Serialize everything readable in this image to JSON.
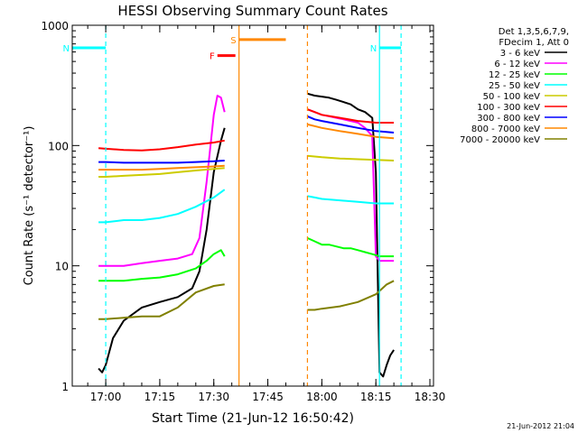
{
  "chart_data": {
    "type": "line",
    "title": "HESSI Observing Summary Count Rates",
    "xlabel": "Start Time (21-Jun-12 16:50:42)",
    "ylabel": "Count Rate (s⁻¹ detector⁻¹)",
    "y_scale": "log",
    "ylim": [
      1,
      1000
    ],
    "xlim": [
      "16:50:42",
      "18:31:00"
    ],
    "x_tick_labels": [
      "17:00",
      "17:15",
      "17:30",
      "17:45",
      "18:00",
      "18:15",
      "18:30"
    ],
    "x_tick_values": [
      "17:00",
      "17:15",
      "17:30",
      "17:45",
      "18:00",
      "18:15",
      "18:30"
    ],
    "y_tick_labels": [
      "1",
      "10",
      "100",
      "1000"
    ],
    "y_tick_values": [
      1,
      10,
      100,
      1000
    ],
    "legend_position": "right",
    "legend_header": [
      "Det 1,3,5,6,7,9,",
      "FDecim 1, Att 0"
    ],
    "series": [
      {
        "name": "3 - 6 keV",
        "color": "#000000",
        "segments": [
          {
            "x": [
              "16:58",
              "16:59",
              "17:00",
              "17:02",
              "17:05",
              "17:10",
              "17:15",
              "17:20",
              "17:24",
              "17:26",
              "17:28",
              "17:30",
              "17:32",
              "17:33"
            ],
            "y": [
              1.4,
              1.3,
              1.5,
              2.5,
              3.5,
              4.5,
              5,
              5.5,
              6.5,
              9,
              20,
              60,
              110,
              140
            ]
          },
          {
            "x": [
              "17:56",
              "17:58",
              "18:00",
              "18:02",
              "18:04",
              "18:06",
              "18:08",
              "18:10",
              "18:12",
              "18:14",
              "18:15",
              "18:16",
              "18:17",
              "18:18",
              "18:19",
              "18:20"
            ],
            "y": [
              270,
              260,
              255,
              250,
              240,
              230,
              220,
              200,
              190,
              170,
              60,
              1.3,
              1.2,
              1.5,
              1.8,
              2
            ]
          }
        ]
      },
      {
        "name": "6 - 12 keV",
        "color": "#ff00ff",
        "segments": [
          {
            "x": [
              "16:58",
              "17:00",
              "17:05",
              "17:10",
              "17:15",
              "17:20",
              "17:24",
              "17:26",
              "17:28",
              "17:30",
              "17:31",
              "17:32",
              "17:33"
            ],
            "y": [
              10,
              10,
              10,
              10.5,
              11,
              11.5,
              12.5,
              17,
              50,
              180,
              260,
              250,
              190
            ]
          },
          {
            "x": [
              "17:56",
              "17:58",
              "18:00",
              "18:02",
              "18:04",
              "18:06",
              "18:08",
              "18:10",
              "18:12",
              "18:14",
              "18:15",
              "18:16",
              "18:18",
              "18:20"
            ],
            "y": [
              200,
              190,
              180,
              175,
              170,
              165,
              160,
              155,
              140,
              120,
              12,
              11,
              11,
              11
            ]
          }
        ]
      },
      {
        "name": "12 - 25 keV",
        "color": "#00ff00",
        "segments": [
          {
            "x": [
              "16:58",
              "17:00",
              "17:05",
              "17:10",
              "17:15",
              "17:20",
              "17:25",
              "17:28",
              "17:30",
              "17:32",
              "17:33"
            ],
            "y": [
              7.5,
              7.5,
              7.5,
              7.8,
              8,
              8.5,
              9.5,
              11,
              12.5,
              13.5,
              12
            ]
          },
          {
            "x": [
              "17:56",
              "17:58",
              "18:00",
              "18:02",
              "18:04",
              "18:06",
              "18:08",
              "18:10",
              "18:12",
              "18:14",
              "18:16",
              "18:18",
              "18:20"
            ],
            "y": [
              17,
              16,
              15,
              15,
              14.5,
              14,
              14,
              13.5,
              13,
              12.5,
              12,
              12,
              12
            ]
          }
        ]
      },
      {
        "name": "25 - 50 keV",
        "color": "#00ffff",
        "segments": [
          {
            "x": [
              "16:58",
              "17:00",
              "17:05",
              "17:10",
              "17:15",
              "17:20",
              "17:25",
              "17:30",
              "17:33"
            ],
            "y": [
              23,
              23,
              24,
              24,
              25,
              27,
              31,
              37,
              43
            ]
          },
          {
            "x": [
              "17:56",
              "17:58",
              "18:00",
              "18:05",
              "18:10",
              "18:15",
              "18:20"
            ],
            "y": [
              38,
              37,
              36,
              35,
              34,
              33,
              33
            ]
          }
        ]
      },
      {
        "name": "50 - 100 keV",
        "color": "#cccc00",
        "segments": [
          {
            "x": [
              "16:58",
              "17:00",
              "17:05",
              "17:10",
              "17:15",
              "17:20",
              "17:25",
              "17:30",
              "17:33"
            ],
            "y": [
              55,
              55,
              56,
              57,
              58,
              60,
              62,
              64,
              65
            ]
          },
          {
            "x": [
              "17:56",
              "17:58",
              "18:00",
              "18:05",
              "18:10",
              "18:15",
              "18:20"
            ],
            "y": [
              82,
              81,
              80,
              78,
              77,
              76,
              75
            ]
          }
        ]
      },
      {
        "name": "100 - 300 keV",
        "color": "#ff0000",
        "segments": [
          {
            "x": [
              "16:58",
              "17:00",
              "17:05",
              "17:10",
              "17:15",
              "17:20",
              "17:25",
              "17:30",
              "17:33"
            ],
            "y": [
              95,
              94,
              92,
              91,
              93,
              97,
              102,
              106,
              110
            ]
          },
          {
            "x": [
              "17:56",
              "17:58",
              "18:00",
              "18:05",
              "18:10",
              "18:15",
              "18:20"
            ],
            "y": [
              200,
              190,
              180,
              170,
              160,
              155,
              155
            ]
          }
        ]
      },
      {
        "name": "300 - 800 keV",
        "color": "#0000ff",
        "segments": [
          {
            "x": [
              "16:58",
              "17:00",
              "17:05",
              "17:10",
              "17:15",
              "17:20",
              "17:25",
              "17:30",
              "17:33"
            ],
            "y": [
              73,
              73,
              72,
              72,
              72,
              72,
              73,
              74,
              75
            ]
          },
          {
            "x": [
              "17:56",
              "17:58",
              "18:00",
              "18:05",
              "18:10",
              "18:15",
              "18:20"
            ],
            "y": [
              175,
              165,
              160,
              150,
              140,
              132,
              128
            ]
          }
        ]
      },
      {
        "name": "800 - 7000 keV",
        "color": "#ff8800",
        "segments": [
          {
            "x": [
              "16:58",
              "17:00",
              "17:05",
              "17:10",
              "17:15",
              "17:20",
              "17:25",
              "17:30",
              "17:33"
            ],
            "y": [
              63,
              63,
              63,
              63,
              64,
              65,
              66,
              67,
              68
            ]
          },
          {
            "x": [
              "17:56",
              "17:58",
              "18:00",
              "18:05",
              "18:10",
              "18:15",
              "18:20"
            ],
            "y": [
              150,
              145,
              140,
              132,
              125,
              118,
              115
            ]
          }
        ]
      },
      {
        "name": "7000 - 20000 keV",
        "color": "#808000",
        "segments": [
          {
            "x": [
              "16:58",
              "17:00",
              "17:05",
              "17:10",
              "17:15",
              "17:20",
              "17:25",
              "17:30",
              "17:33"
            ],
            "y": [
              3.6,
              3.6,
              3.7,
              3.8,
              3.8,
              4.5,
              6,
              6.8,
              7
            ]
          },
          {
            "x": [
              "17:56",
              "17:58",
              "18:00",
              "18:05",
              "18:10",
              "18:15",
              "18:18",
              "18:20"
            ],
            "y": [
              4.3,
              4.3,
              4.4,
              4.6,
              5,
              5.8,
              7,
              7.5
            ]
          }
        ]
      }
    ],
    "flags": [
      {
        "label": "N",
        "color": "#00ffff",
        "y": 650,
        "start": "16:50:42",
        "end": "17:00"
      },
      {
        "label": "N",
        "color": "#00ffff",
        "y": 650,
        "start": "18:16",
        "end": "18:22"
      },
      {
        "label": "S",
        "color": "#ff8800",
        "y": 760,
        "start": "17:37",
        "end": "17:50"
      },
      {
        "label": "F",
        "color": "#ff0000",
        "y": 560,
        "start": "17:31",
        "end": "17:36"
      }
    ],
    "vertical_markers": [
      {
        "color": "#00ffff",
        "style": "dashed",
        "x": "17:00"
      },
      {
        "color": "#ff8800",
        "style": "solid",
        "x": "17:37"
      },
      {
        "color": "#ff8800",
        "style": "dashed",
        "x": "17:56"
      },
      {
        "color": "#00ffff",
        "style": "solid",
        "x": "18:16"
      },
      {
        "color": "#00ffff",
        "style": "dashed",
        "x": "18:22"
      }
    ],
    "footer_date": "21-Jun-2012 21:04"
  }
}
